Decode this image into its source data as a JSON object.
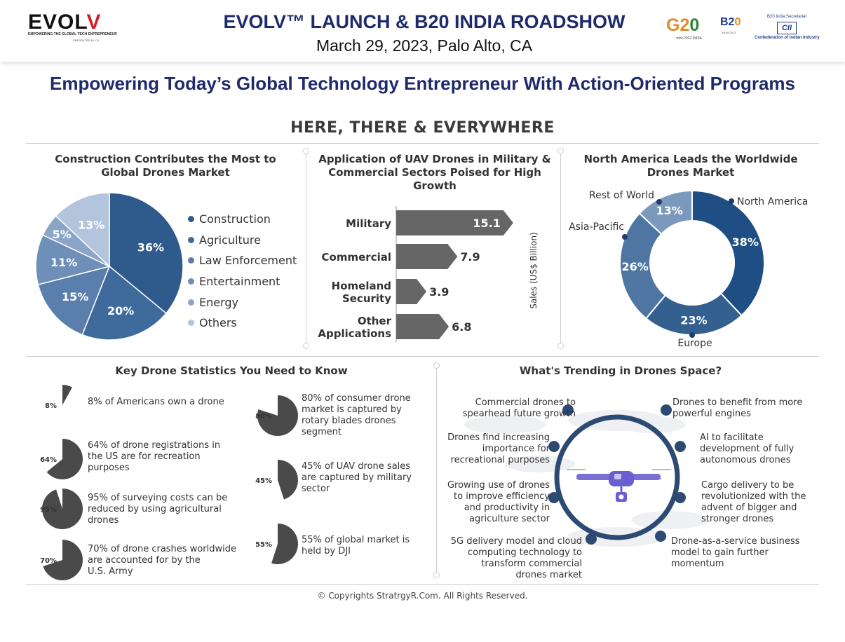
{
  "header": {
    "logo_text_main": "EVOL",
    "logo_text_end": "V",
    "logo_tagline": "EMPOWERING THE GLOBAL TECH ENTREPRENEUR",
    "logo_presented": "PRESENTED BY CII",
    "title": "EVOLV™ LAUNCH & B20 INDIA ROADSHOW",
    "subtitle": "March 29, 2023, Palo Alto, CA",
    "g20_main": "G2",
    "g20_zero": "0",
    "g20_sub": "भारत 2023 INDIA",
    "b20_main": "B2",
    "b20_zero": "0",
    "b20_sub": "INDIA 2023",
    "cii_top": "B20 India Secretariat",
    "cii_logo": "CII",
    "cii_bottom": "Confederation of Indian Industry"
  },
  "headline": "Empowering Today’s Global Technology Entrepreneur With Action-Oriented Programs",
  "section_title": "HERE, THERE & EVERYWHERE",
  "panels": {
    "pie_title": "Construction Contributes the Most to Global Drones Market",
    "bar_title": "Application of UAV Drones in Military & Commercial Sectors Poised for High Growth",
    "donut_title": "North America Leads the Worldwide Drones Market",
    "stats_title": "Key Drone Statistics You Need to Know",
    "trends_title": "What's Trending in Drones Space?"
  },
  "colors": {
    "navy": "#1f2a6b",
    "blue_1": "#2f5a8c",
    "blue_2": "#3f6a9c",
    "blue_3": "#5a7fac",
    "blue_4": "#6e8fb8",
    "blue_5": "#8aa5c8",
    "blue_6": "#b3c5dc",
    "donut_1": "#1f4e85",
    "donut_2": "#34608f",
    "donut_3": "#4f76a3",
    "donut_4": "#7b99bd",
    "bar": "#666666",
    "stat_pie": "#4a4a4a"
  },
  "chart_data": [
    {
      "type": "pie",
      "title": "Construction Contributes the Most to Global Drones Market",
      "categories": [
        "Construction",
        "Agriculture",
        "Law Enforcement",
        "Entertainment",
        "Energy",
        "Others"
      ],
      "values": [
        36,
        20,
        15,
        11,
        5,
        13
      ],
      "labels": [
        "36%",
        "20%",
        "15%",
        "11%",
        "5%",
        "13%"
      ],
      "legend": "right"
    },
    {
      "type": "bar",
      "orientation": "horizontal",
      "title": "Application of UAV Drones in Military & Commercial Sectors Poised for High Growth",
      "categories": [
        "Military",
        "Commercial",
        "Homeland Security",
        "Other Applications"
      ],
      "values": [
        15.1,
        7.9,
        3.9,
        6.8
      ],
      "labels": [
        "15.1",
        "7.9",
        "3.9",
        "6.8"
      ],
      "ylabel": "Sales (US$ Billion)"
    },
    {
      "type": "pie",
      "subtype": "donut",
      "title": "North America Leads the Worldwide Drones Market",
      "categories": [
        "North America",
        "Europe",
        "Asia-Pacific",
        "Rest of World"
      ],
      "values": [
        38,
        23,
        26,
        13
      ],
      "labels": [
        "38%",
        "23%",
        "26%",
        "13%"
      ]
    }
  ],
  "stats": [
    {
      "pct": 8,
      "label": "8%",
      "text": [
        "8% of Americans own a drone"
      ]
    },
    {
      "pct": 64,
      "label": "64%",
      "text": [
        "64% of drone registrations in",
        "the US are for recreation",
        "purposes"
      ]
    },
    {
      "pct": 95,
      "label": "95%",
      "text": [
        "95% of surveying costs can be",
        "reduced by using agricultural",
        "drones"
      ]
    },
    {
      "pct": 70,
      "label": "70%",
      "text": [
        "70% of drone crashes worldwide",
        "are accounted for by the",
        "U.S. Army"
      ]
    },
    {
      "pct": 80,
      "label": "80%",
      "text": [
        "80% of consumer drone",
        "market is captured by",
        "rotary blades drones",
        "segment"
      ]
    },
    {
      "pct": 45,
      "label": "45%",
      "text": [
        "45% of UAV drone sales",
        "are captured by military",
        "sector"
      ]
    },
    {
      "pct": 55,
      "label": "55%",
      "text": [
        "55% of global market is",
        "held by DJI"
      ]
    }
  ],
  "trends": [
    {
      "text": [
        "Commercial drones to",
        "spearhead future growth"
      ]
    },
    {
      "text": [
        "Drones find increasing",
        "importance for",
        "recreational purposes"
      ]
    },
    {
      "text": [
        "Growing use of drones",
        "to improve efficiency",
        "and productivity in",
        "agriculture sector"
      ]
    },
    {
      "text": [
        "5G delivery model and cloud",
        "computing technology to",
        "transform commercial",
        "drones market"
      ]
    },
    {
      "text": [
        "Drones to benefit from more",
        "powerful engines"
      ]
    },
    {
      "text": [
        "AI to facilitate",
        "development of fully",
        "autonomous drones"
      ]
    },
    {
      "text": [
        "Cargo delivery to be",
        "revolutionized with the",
        "advent of bigger and",
        "stronger drones"
      ]
    },
    {
      "text": [
        "Drone-as-a-service business",
        "model to gain further",
        "momentum"
      ]
    }
  ],
  "footer": "© Copyrights StratrgyR.Com. All Rights Reserved."
}
